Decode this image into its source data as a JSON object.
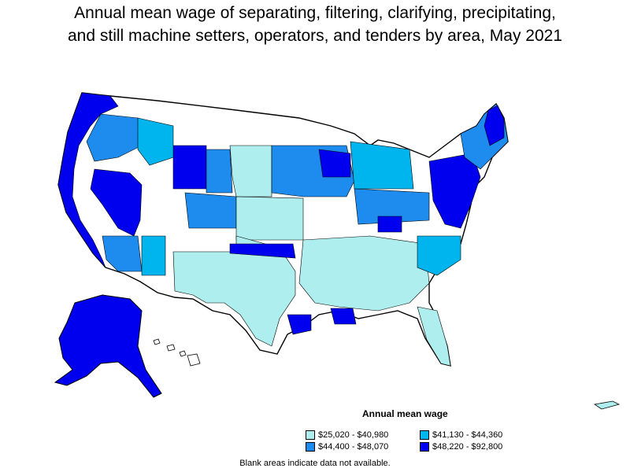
{
  "title_line1": "Annual mean wage of separating, filtering, clarifying, precipitating,",
  "title_line2": "and still machine setters, operators, and tenders by area, May 2021",
  "legend": {
    "title": "Annual mean wage",
    "items": [
      {
        "label": "$25,020 - $40,980",
        "color": "#aeeeee"
      },
      {
        "label": "$41,130 - $44,360",
        "color": "#00b4ee"
      },
      {
        "label": "$44,400 - $48,070",
        "color": "#1e8cee"
      },
      {
        "label": "$48,220 - $92,800",
        "color": "#0000ee"
      }
    ]
  },
  "footnote": "Blank areas indicate data not available."
}
